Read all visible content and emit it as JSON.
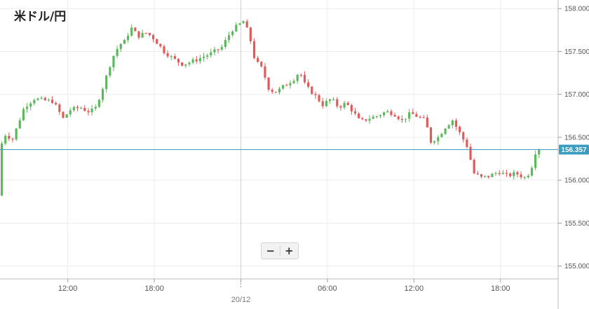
{
  "title": "米ドル/円",
  "zoom": {
    "minus_label": "−",
    "plus_label": "+"
  },
  "chart_data": {
    "type": "candlestick",
    "title": "米ドル/円",
    "ylim": [
      154.85,
      158.1
    ],
    "y_ticks": [
      "158.000",
      "157.500",
      "157.000",
      "156.500",
      "156.000",
      "155.500",
      "155.000"
    ],
    "y_tick_values": [
      158.0,
      157.5,
      157.0,
      156.5,
      156.0,
      155.5,
      155.0
    ],
    "x_ticks": [
      "12:00",
      "18:00",
      "",
      "06:00",
      "12:00",
      "18:00"
    ],
    "x_tick_hours": [
      12,
      18,
      24,
      30,
      36,
      42
    ],
    "date_label": "20/12",
    "date_label_hour": 24,
    "x_range_hours": [
      7.3,
      46.0
    ],
    "current_price": 156.357,
    "current_price_label": "156.357",
    "grid": true,
    "up_color": "#5cb85c",
    "down_color": "#e05a5a",
    "price_line_color": "#3a9dc0",
    "candle_interval_minutes": 15,
    "anchors": [
      [
        7.3,
        155.82
      ],
      [
        7.6,
        156.55
      ],
      [
        8.3,
        156.48
      ],
      [
        9.1,
        156.85
      ],
      [
        9.8,
        156.95
      ],
      [
        10.5,
        156.93
      ],
      [
        11.1,
        156.92
      ],
      [
        11.8,
        156.72
      ],
      [
        12.3,
        156.82
      ],
      [
        13.0,
        156.85
      ],
      [
        13.5,
        156.8
      ],
      [
        14.0,
        156.82
      ],
      [
        14.6,
        157.1
      ],
      [
        15.2,
        157.42
      ],
      [
        15.7,
        157.58
      ],
      [
        16.1,
        157.62
      ],
      [
        16.5,
        157.78
      ],
      [
        17.0,
        157.68
      ],
      [
        17.6,
        157.72
      ],
      [
        18.1,
        157.65
      ],
      [
        18.8,
        157.5
      ],
      [
        19.4,
        157.42
      ],
      [
        20.1,
        157.35
      ],
      [
        20.7,
        157.38
      ],
      [
        21.4,
        157.43
      ],
      [
        22.1,
        157.48
      ],
      [
        22.8,
        157.55
      ],
      [
        23.5,
        157.75
      ],
      [
        24.3,
        157.85
      ],
      [
        24.7,
        157.7
      ],
      [
        25.1,
        157.4
      ],
      [
        25.6,
        157.3
      ],
      [
        26.1,
        157.05
      ],
      [
        26.6,
        157.03
      ],
      [
        27.3,
        157.12
      ],
      [
        27.8,
        157.18
      ],
      [
        28.2,
        157.27
      ],
      [
        28.6,
        157.1
      ],
      [
        29.2,
        157.0
      ],
      [
        29.8,
        156.88
      ],
      [
        30.4,
        156.95
      ],
      [
        30.9,
        156.85
      ],
      [
        31.4,
        156.9
      ],
      [
        31.9,
        156.8
      ],
      [
        32.4,
        156.68
      ],
      [
        33.0,
        156.72
      ],
      [
        33.6,
        156.75
      ],
      [
        34.2,
        156.8
      ],
      [
        34.7,
        156.78
      ],
      [
        35.3,
        156.7
      ],
      [
        35.9,
        156.78
      ],
      [
        36.4,
        156.74
      ],
      [
        36.9,
        156.7
      ],
      [
        37.3,
        156.45
      ],
      [
        37.8,
        156.5
      ],
      [
        38.3,
        156.62
      ],
      [
        38.8,
        156.7
      ],
      [
        39.3,
        156.55
      ],
      [
        39.8,
        156.4
      ],
      [
        40.3,
        156.08
      ],
      [
        40.8,
        156.03
      ],
      [
        41.4,
        156.05
      ],
      [
        42.0,
        156.1
      ],
      [
        42.6,
        156.05
      ],
      [
        43.2,
        156.08
      ],
      [
        43.8,
        156.03
      ],
      [
        44.2,
        156.1
      ],
      [
        44.6,
        156.357
      ]
    ]
  }
}
